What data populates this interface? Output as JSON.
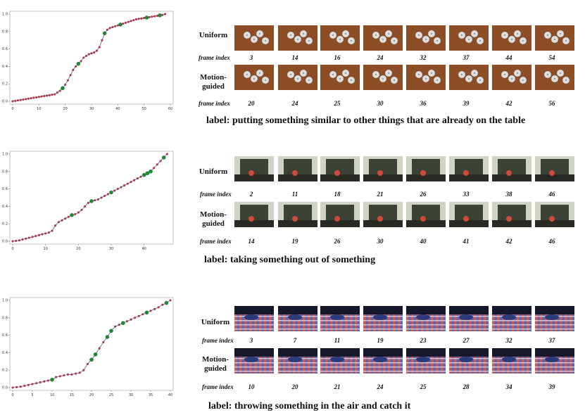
{
  "chart_data": [
    {
      "type": "line",
      "x": [
        0,
        1,
        2,
        3,
        4,
        5,
        6,
        7,
        8,
        9,
        10,
        11,
        12,
        13,
        14,
        15,
        16,
        17,
        18,
        19,
        20,
        21,
        22,
        23,
        24,
        25,
        26,
        27,
        28,
        29,
        30,
        31,
        32,
        33,
        34,
        35,
        36,
        37,
        38,
        39,
        40,
        41,
        42,
        43,
        44,
        45,
        46,
        47,
        48,
        49,
        50,
        51,
        52,
        53,
        54,
        55,
        56,
        57,
        58
      ],
      "values": [
        0.0,
        0.005,
        0.01,
        0.015,
        0.02,
        0.025,
        0.03,
        0.035,
        0.04,
        0.045,
        0.05,
        0.055,
        0.06,
        0.065,
        0.07,
        0.075,
        0.08,
        0.1,
        0.12,
        0.15,
        0.19,
        0.24,
        0.3,
        0.36,
        0.4,
        0.43,
        0.46,
        0.5,
        0.52,
        0.54,
        0.55,
        0.56,
        0.58,
        0.62,
        0.7,
        0.78,
        0.82,
        0.84,
        0.85,
        0.86,
        0.87,
        0.88,
        0.89,
        0.9,
        0.91,
        0.92,
        0.93,
        0.94,
        0.945,
        0.95,
        0.955,
        0.96,
        0.965,
        0.97,
        0.975,
        0.98,
        0.985,
        0.99,
        1.0
      ],
      "highlighted_x": [
        19,
        25,
        35,
        41,
        51,
        56
      ],
      "xticks": [
        0,
        10,
        20,
        30,
        40,
        50,
        60
      ],
      "yticks": [
        "0.0",
        "0.2",
        "0.4",
        "0.6",
        "0.8",
        "1.0"
      ],
      "xlim": [
        0,
        60
      ],
      "ylim": [
        0,
        1
      ]
    },
    {
      "type": "line",
      "x": [
        0,
        1,
        2,
        3,
        4,
        5,
        6,
        7,
        8,
        9,
        10,
        11,
        12,
        13,
        14,
        15,
        16,
        17,
        18,
        19,
        20,
        21,
        22,
        23,
        24,
        25,
        26,
        27,
        28,
        29,
        30,
        31,
        32,
        33,
        34,
        35,
        36,
        37,
        38,
        39,
        40,
        41,
        42,
        43,
        44,
        45,
        46,
        47
      ],
      "values": [
        0.0,
        0.005,
        0.01,
        0.02,
        0.03,
        0.04,
        0.05,
        0.06,
        0.07,
        0.08,
        0.09,
        0.1,
        0.12,
        0.18,
        0.22,
        0.24,
        0.26,
        0.28,
        0.3,
        0.31,
        0.33,
        0.36,
        0.4,
        0.44,
        0.46,
        0.47,
        0.48,
        0.5,
        0.52,
        0.54,
        0.56,
        0.58,
        0.6,
        0.62,
        0.64,
        0.66,
        0.68,
        0.7,
        0.72,
        0.74,
        0.76,
        0.78,
        0.8,
        0.84,
        0.88,
        0.92,
        0.96,
        1.0
      ],
      "highlighted_x": [
        18,
        24,
        30,
        40,
        41,
        42,
        46
      ],
      "xticks": [
        0,
        10,
        20,
        30,
        40
      ],
      "yticks": [
        "0.0",
        "0.2",
        "0.4",
        "0.6",
        "0.8",
        "1.0"
      ],
      "xlim": [
        0,
        48
      ],
      "ylim": [
        0,
        1
      ]
    },
    {
      "type": "line",
      "x": [
        0,
        1,
        2,
        3,
        4,
        5,
        6,
        7,
        8,
        9,
        10,
        11,
        12,
        13,
        14,
        15,
        16,
        17,
        18,
        19,
        20,
        21,
        22,
        23,
        24,
        25,
        26,
        27,
        28,
        29,
        30,
        31,
        32,
        33,
        34,
        35,
        36,
        37,
        38,
        39,
        40
      ],
      "values": [
        0.0,
        0.005,
        0.01,
        0.02,
        0.03,
        0.04,
        0.05,
        0.06,
        0.07,
        0.08,
        0.09,
        0.12,
        0.13,
        0.14,
        0.15,
        0.15,
        0.16,
        0.17,
        0.2,
        0.27,
        0.32,
        0.38,
        0.45,
        0.52,
        0.58,
        0.65,
        0.7,
        0.72,
        0.74,
        0.76,
        0.78,
        0.8,
        0.82,
        0.84,
        0.86,
        0.88,
        0.9,
        0.92,
        0.95,
        0.97,
        1.0
      ],
      "highlighted_x": [
        10,
        20,
        21,
        24,
        25,
        28,
        34,
        39
      ],
      "xticks": [
        0,
        5,
        10,
        15,
        20,
        25,
        30,
        35,
        40
      ],
      "yticks": [
        "0.0",
        "0.2",
        "0.4",
        "0.6",
        "0.8",
        "1.0"
      ],
      "xlim": [
        0,
        40
      ],
      "ylim": [
        0,
        1
      ]
    }
  ],
  "panels": [
    {
      "uniform_label": "Uniform",
      "motion_label_1": "Motion-",
      "motion_label_2": "guided",
      "frame_index_label": "frame index",
      "uniform_frames": [
        "3",
        "14",
        "16",
        "24",
        "32",
        "37",
        "44",
        "54"
      ],
      "motion_frames": [
        "20",
        "24",
        "25",
        "30",
        "36",
        "39",
        "42",
        "56"
      ],
      "caption": "label: putting something similar to other things that are already on the table",
      "colors": {
        "bg": "#8a4a22",
        "fg": "#d8d8d8"
      }
    },
    {
      "uniform_label": "Uniform",
      "motion_label_1": "Motion-",
      "motion_label_2": "guided",
      "frame_index_label": "frame index",
      "uniform_frames": [
        "2",
        "11",
        "18",
        "21",
        "26",
        "33",
        "38",
        "46"
      ],
      "motion_frames": [
        "14",
        "19",
        "26",
        "30",
        "40",
        "41",
        "42",
        "46"
      ],
      "caption": "label: taking something out of something",
      "colors": {
        "bg": "#2f3a2a",
        "fg": "#c9d2c0"
      }
    },
    {
      "uniform_label": "Uniform",
      "motion_label_1": "Motion-",
      "motion_label_2": "guided",
      "frame_index_label": "frame index",
      "uniform_frames": [
        "3",
        "7",
        "11",
        "19",
        "23",
        "27",
        "32",
        "37"
      ],
      "motion_frames": [
        "10",
        "20",
        "21",
        "24",
        "25",
        "28",
        "34",
        "39"
      ],
      "caption": "label: throwing something in the air and catch it",
      "colors": {
        "bg": "#1c2a4a",
        "fg": "#d03030"
      }
    }
  ]
}
